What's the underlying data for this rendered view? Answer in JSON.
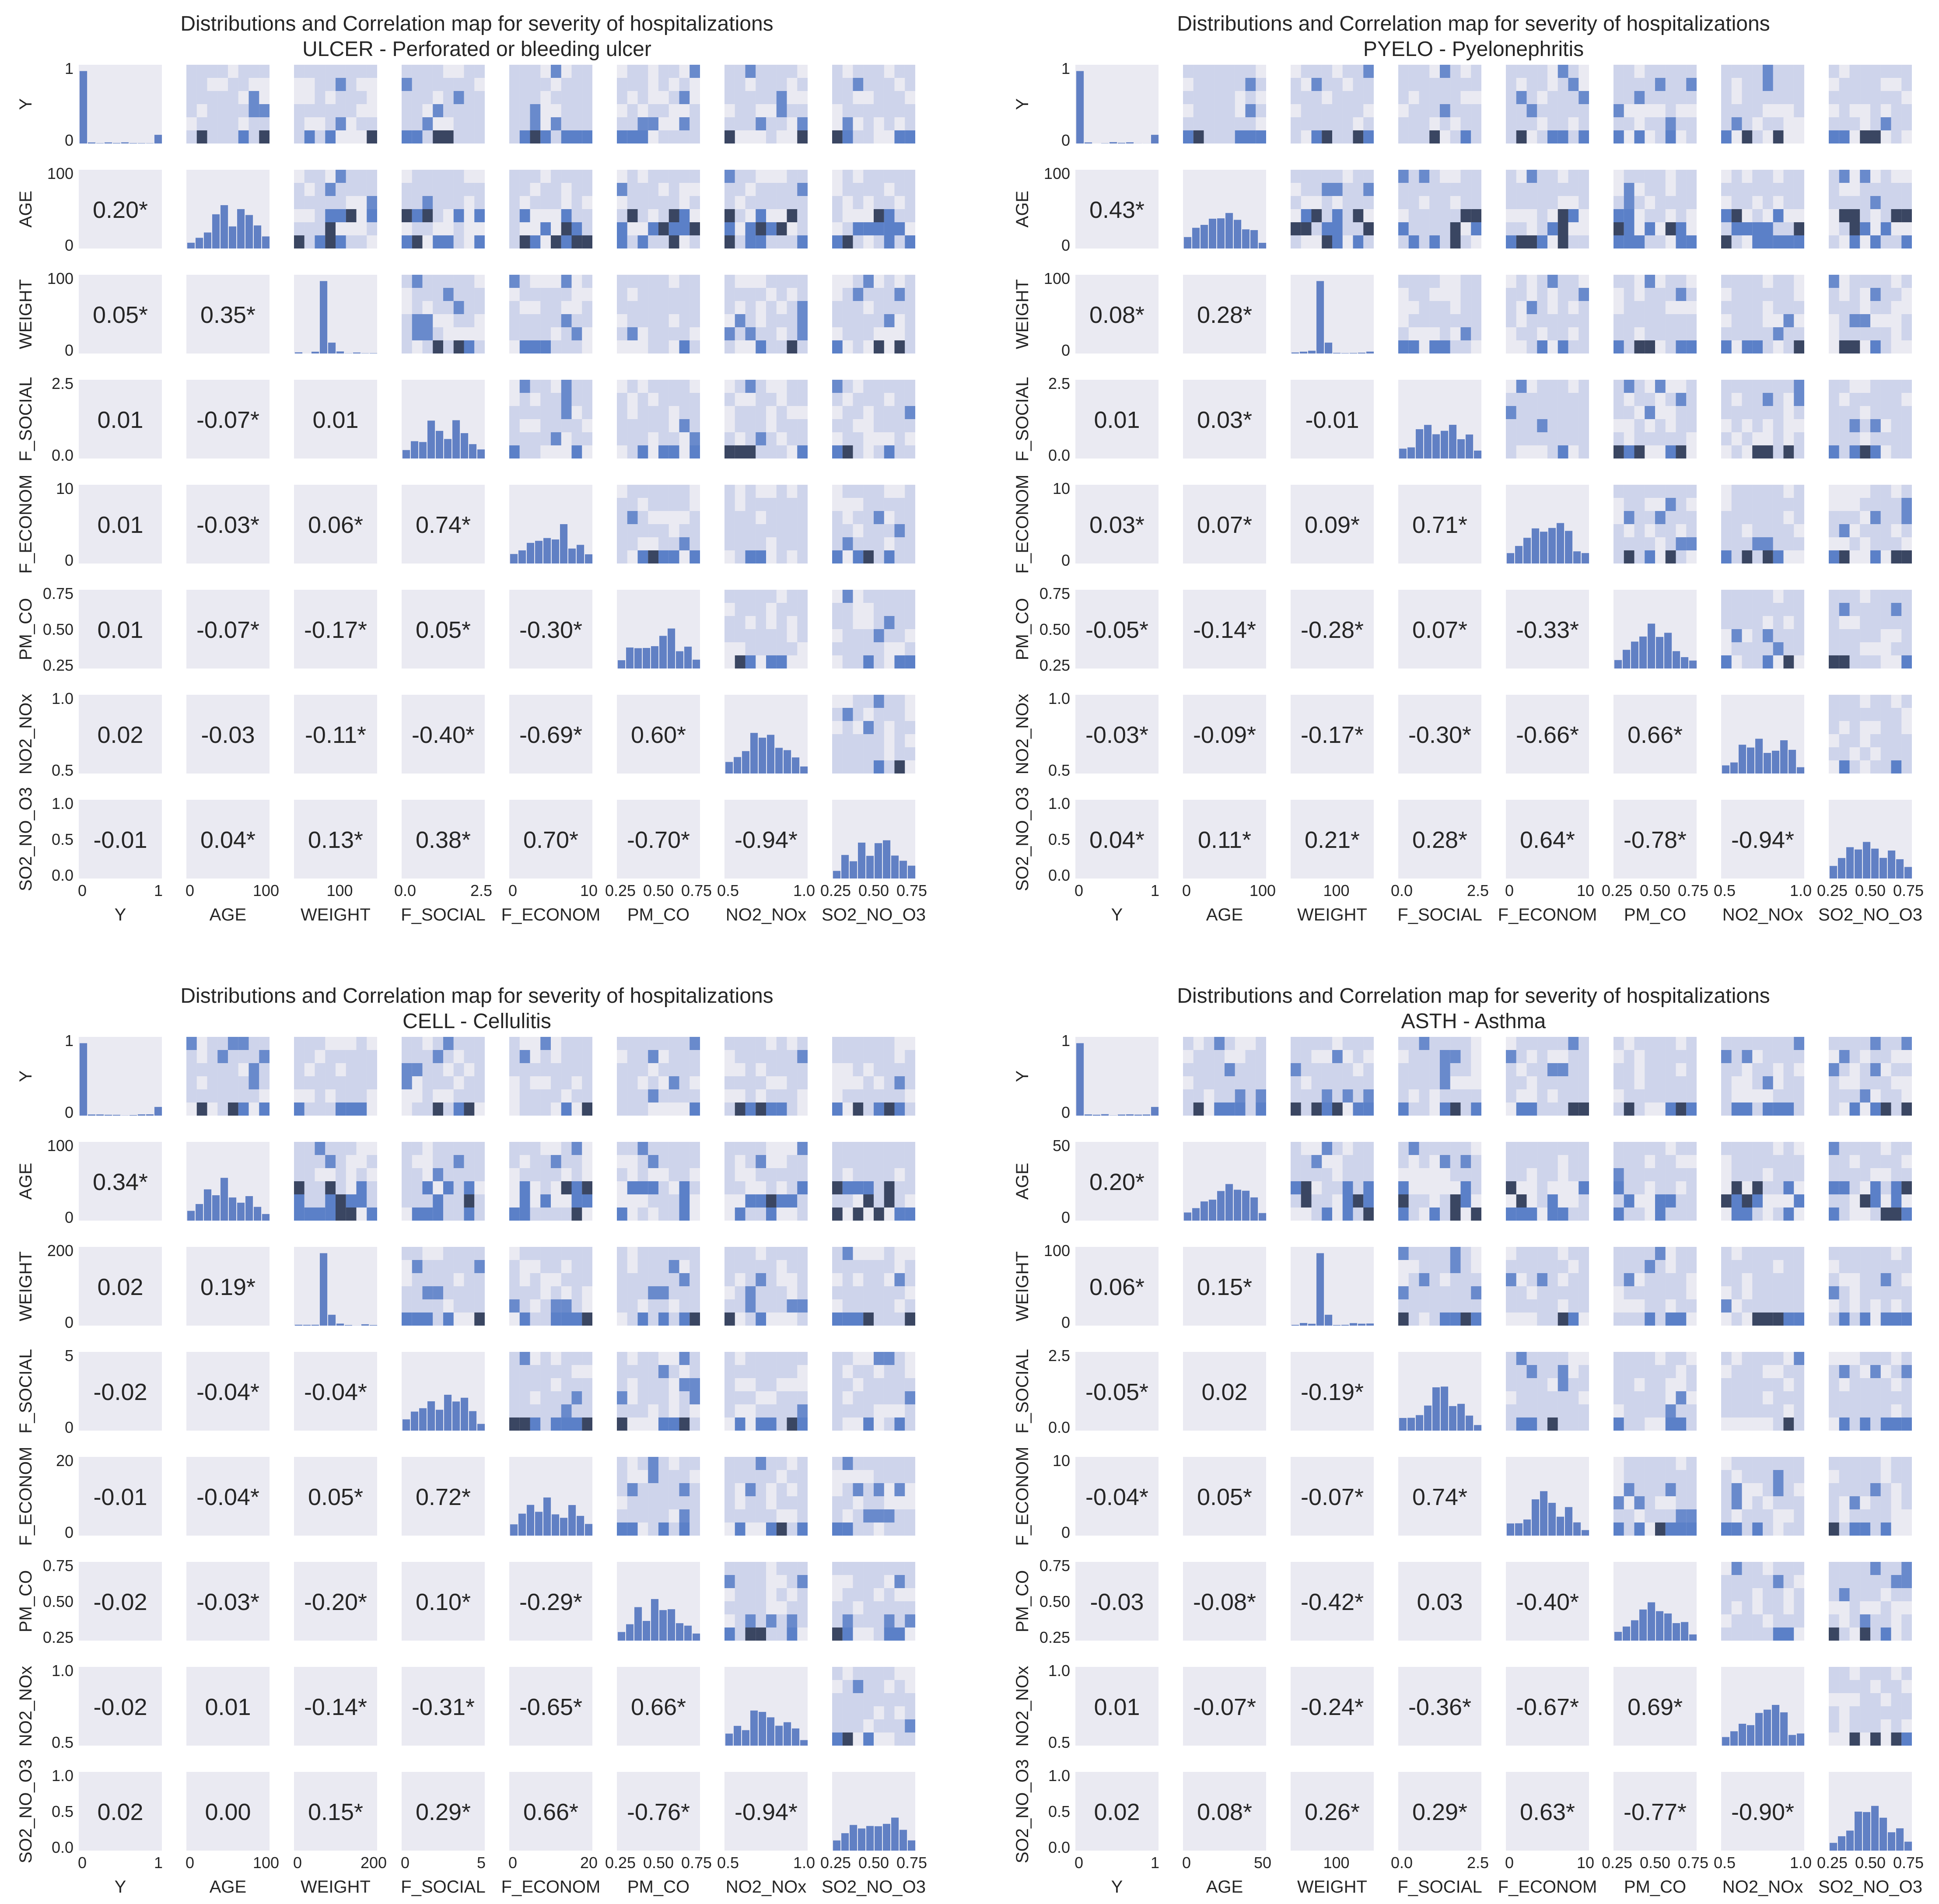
{
  "chart_data": [
    {
      "type": "heatmap",
      "title": "Distributions and Correlation map for severity of hospitalizations",
      "subtitle": "ULCER - Perforated or bleeding ulcer",
      "variables": [
        "Y",
        "AGE",
        "WEIGHT",
        "F_SOCIAL",
        "F_ECONOM",
        "PM_CO",
        "NO2_NOx",
        "SO2_NO_O3"
      ],
      "x_ticks": [
        [
          "0",
          "1"
        ],
        [
          "0",
          "100"
        ],
        [
          "100"
        ],
        [
          "0.0",
          "2.5"
        ],
        [
          "0",
          "10"
        ],
        [
          "0.25",
          "0.50",
          "0.75"
        ],
        [
          "0.5",
          "1.0"
        ],
        [
          "0.25",
          "0.50",
          "0.75"
        ]
      ],
      "y_ticks": [
        [
          "0",
          "1"
        ],
        [
          "0",
          "100"
        ],
        [
          "0",
          "100"
        ],
        [
          "0.0",
          "2.5"
        ],
        [
          "0",
          "10"
        ],
        [
          "0.25",
          "0.50",
          "0.75"
        ],
        [
          "0.5",
          "1.0"
        ],
        [
          "0.0",
          "0.5",
          "1.0"
        ]
      ],
      "correlations": [
        [
          "0.20*"
        ],
        [
          "0.05*",
          "0.35*"
        ],
        [
          "0.01",
          "-0.07*",
          "0.01"
        ],
        [
          "0.01",
          "-0.03*",
          "0.06*",
          "0.74*"
        ],
        [
          "0.01",
          "-0.07*",
          "-0.17*",
          "0.05*",
          "-0.30*"
        ],
        [
          "0.02",
          "-0.03",
          "-0.11*",
          "-0.40*",
          "-0.69*",
          "0.60*"
        ],
        [
          "-0.01",
          "0.04*",
          "0.13*",
          "0.38*",
          "0.70*",
          "-0.70*",
          "-0.94*"
        ]
      ]
    },
    {
      "type": "heatmap",
      "title": "Distributions and Correlation map for severity of hospitalizations",
      "subtitle": "PYELO - Pyelonephritis",
      "variables": [
        "Y",
        "AGE",
        "WEIGHT",
        "F_SOCIAL",
        "F_ECONOM",
        "PM_CO",
        "NO2_NOx",
        "SO2_NO_O3"
      ],
      "x_ticks": [
        [
          "0",
          "1"
        ],
        [
          "0",
          "100"
        ],
        [
          "100"
        ],
        [
          "0.0",
          "2.5"
        ],
        [
          "0",
          "10"
        ],
        [
          "0.25",
          "0.50",
          "0.75"
        ],
        [
          "0.5",
          "1.0"
        ],
        [
          "0.25",
          "0.50",
          "0.75"
        ]
      ],
      "y_ticks": [
        [
          "0",
          "1"
        ],
        [
          "0",
          "100"
        ],
        [
          "0",
          "100"
        ],
        [
          "0.0",
          "2.5"
        ],
        [
          "0",
          "10"
        ],
        [
          "0.25",
          "0.50",
          "0.75"
        ],
        [
          "0.5",
          "1.0"
        ],
        [
          "0.0",
          "0.5",
          "1.0"
        ]
      ],
      "correlations": [
        [
          "0.43*"
        ],
        [
          "0.08*",
          "0.28*"
        ],
        [
          "0.01",
          "0.03*",
          "-0.01"
        ],
        [
          "0.03*",
          "0.07*",
          "0.09*",
          "0.71*"
        ],
        [
          "-0.05*",
          "-0.14*",
          "-0.28*",
          "0.07*",
          "-0.33*"
        ],
        [
          "-0.03*",
          "-0.09*",
          "-0.17*",
          "-0.30*",
          "-0.66*",
          "0.66*"
        ],
        [
          "0.04*",
          "0.11*",
          "0.21*",
          "0.28*",
          "0.64*",
          "-0.78*",
          "-0.94*"
        ]
      ]
    },
    {
      "type": "heatmap",
      "title": "Distributions and Correlation map for severity of hospitalizations",
      "subtitle": "CELL - Cellulitis",
      "variables": [
        "Y",
        "AGE",
        "WEIGHT",
        "F_SOCIAL",
        "F_ECONOM",
        "PM_CO",
        "NO2_NOx",
        "SO2_NO_O3"
      ],
      "x_ticks": [
        [
          "0",
          "1"
        ],
        [
          "0",
          "100"
        ],
        [
          "0",
          "200"
        ],
        [
          "0",
          "5"
        ],
        [
          "0",
          "20"
        ],
        [
          "0.25",
          "0.50",
          "0.75"
        ],
        [
          "0.5",
          "1.0"
        ],
        [
          "0.25",
          "0.50",
          "0.75"
        ]
      ],
      "y_ticks": [
        [
          "0",
          "1"
        ],
        [
          "0",
          "100"
        ],
        [
          "0",
          "200"
        ],
        [
          "0",
          "5"
        ],
        [
          "0",
          "20"
        ],
        [
          "0.25",
          "0.50",
          "0.75"
        ],
        [
          "0.5",
          "1.0"
        ],
        [
          "0.0",
          "0.5",
          "1.0"
        ]
      ],
      "correlations": [
        [
          "0.34*"
        ],
        [
          "0.02",
          "0.19*"
        ],
        [
          "-0.02",
          "-0.04*",
          "-0.04*"
        ],
        [
          "-0.01",
          "-0.04*",
          "0.05*",
          "0.72*"
        ],
        [
          "-0.02",
          "-0.03*",
          "-0.20*",
          "0.10*",
          "-0.29*"
        ],
        [
          "-0.02",
          "0.01",
          "-0.14*",
          "-0.31*",
          "-0.65*",
          "0.66*"
        ],
        [
          "0.02",
          "0.00",
          "0.15*",
          "0.29*",
          "0.66*",
          "-0.76*",
          "-0.94*"
        ]
      ]
    },
    {
      "type": "heatmap",
      "title": "Distributions and Correlation map for severity of hospitalizations",
      "subtitle": "ASTH - Asthma",
      "variables": [
        "Y",
        "AGE",
        "WEIGHT",
        "F_SOCIAL",
        "F_ECONOM",
        "PM_CO",
        "NO2_NOx",
        "SO2_NO_O3"
      ],
      "x_ticks": [
        [
          "0",
          "1"
        ],
        [
          "0",
          "50"
        ],
        [
          "100"
        ],
        [
          "0.0",
          "2.5"
        ],
        [
          "0",
          "10"
        ],
        [
          "0.25",
          "0.50",
          "0.75"
        ],
        [
          "0.5",
          "1.0"
        ],
        [
          "0.25",
          "0.50",
          "0.75"
        ]
      ],
      "y_ticks": [
        [
          "0",
          "1"
        ],
        [
          "0",
          "50"
        ],
        [
          "0",
          "100"
        ],
        [
          "0.0",
          "2.5"
        ],
        [
          "0",
          "10"
        ],
        [
          "0.25",
          "0.50",
          "0.75"
        ],
        [
          "0.5",
          "1.0"
        ],
        [
          "0.0",
          "0.5",
          "1.0"
        ]
      ],
      "correlations": [
        [
          "0.20*"
        ],
        [
          "0.06*",
          "0.15*"
        ],
        [
          "-0.05*",
          "0.02",
          "-0.19*"
        ],
        [
          "-0.04*",
          "0.05*",
          "-0.07*",
          "0.74*"
        ],
        [
          "-0.03",
          "-0.08*",
          "-0.42*",
          "0.03",
          "-0.40*"
        ],
        [
          "0.01",
          "-0.07*",
          "-0.24*",
          "-0.36*",
          "-0.67*",
          "0.69*"
        ],
        [
          "0.02",
          "0.08*",
          "0.26*",
          "0.29*",
          "0.63*",
          "-0.77*",
          "-0.90*"
        ]
      ]
    }
  ],
  "colors": {
    "panel_bg": "#eaeaf2",
    "bar": "#6180c4",
    "heat_low": "#c4cce8",
    "heat_mid": "#5b80c8",
    "heat_high": "#3a4662",
    "text": "#262626"
  }
}
